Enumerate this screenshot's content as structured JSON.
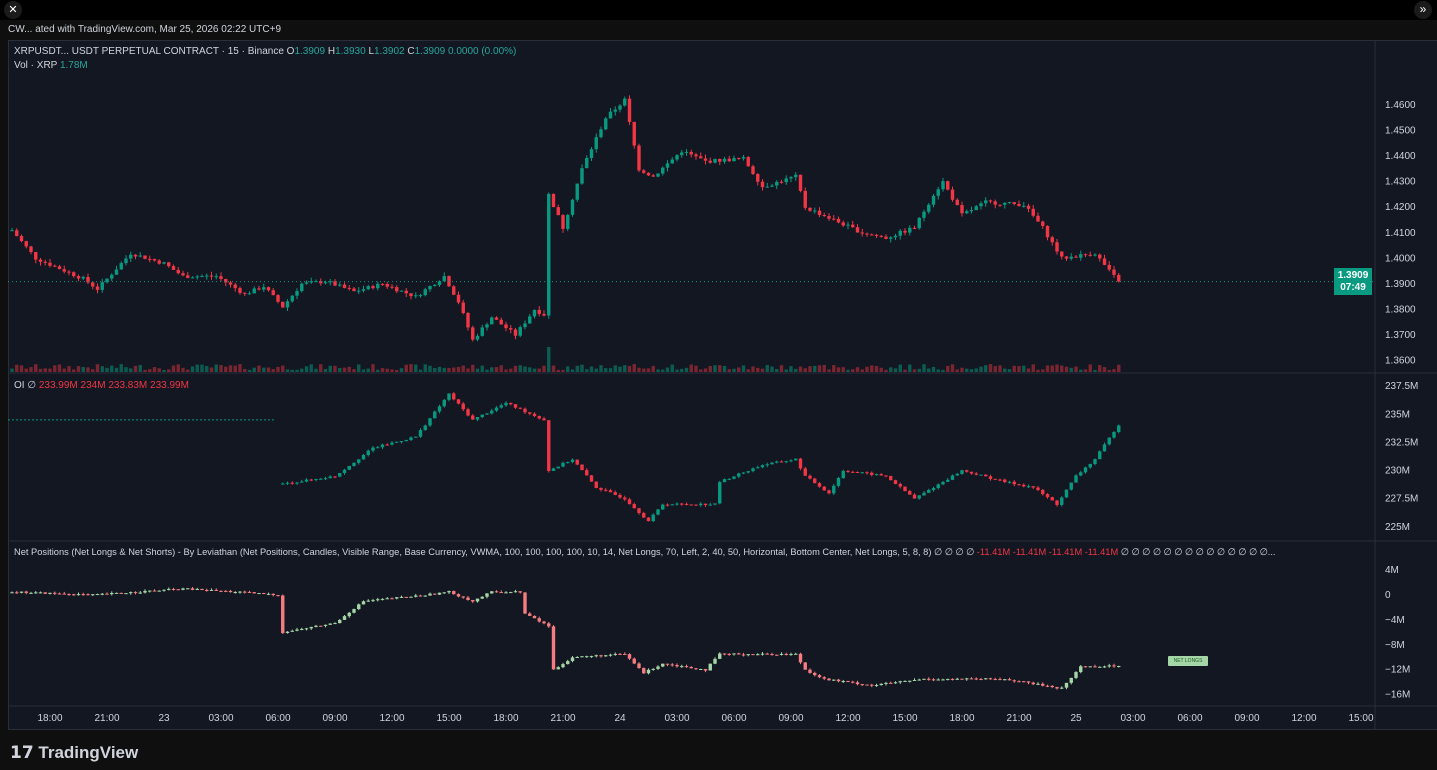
{
  "header": {
    "snapshot": "CW... ated with TradingView.com, Mar 25, 2026 02:22 UTC+9"
  },
  "legend": {
    "symbol": "XRPUSDT... USDT PERPETUAL CONTRACT · 15 · Binance",
    "o_label": "O",
    "o": "1.3909",
    "h_label": "H",
    "h": "1.3930",
    "l_label": "L",
    "l": "1.3902",
    "c_label": "C",
    "c": "1.3909",
    "change": "0.0000 (0.00%)",
    "vol_label": "Vol · XRP",
    "vol": "1.78M"
  },
  "oi_legend": {
    "label": "OI",
    "icon": "∅",
    "values": "233.99M  234M  233.83M  233.99M"
  },
  "net_legend": {
    "label": "Net Positions (Net Longs & Net Shorts) - By Leviathan (Net Positions, Candles, Visible Range, Base Currency, VWMA, 100, 100, 100, 100, 10, 14, Net Longs, 70, Left, 2, 40, 50, Horizontal, Bottom Center, Net Longs, 5, 8, 8)",
    "zeros1": "∅ ∅ ∅ ∅",
    "values": "-11.41M  -11.41M  -11.41M  -11.41M",
    "zeros2": "∅ ∅ ∅ ∅ ∅ ∅ ∅ ∅ ∅ ∅ ∅ ∅ ∅ ∅..."
  },
  "price_label": {
    "price": "1.3909",
    "countdown": "07:49"
  },
  "net_longs_tag": "NET LONGS",
  "logo": "TradingView",
  "buttons": {
    "close": "✕",
    "expand": "»"
  },
  "colors": {
    "up": "#089981",
    "down": "#f23645",
    "net_up": "#a5d6a7",
    "net_down": "#f77c80"
  },
  "chart_data": [
    {
      "type": "candlestick",
      "name": "price",
      "yticks": [
        1.36,
        1.37,
        1.38,
        1.39,
        1.4,
        1.41,
        1.42,
        1.43,
        1.44,
        1.45,
        1.46
      ],
      "ylim": [
        1.3555,
        1.4835
      ],
      "anchors": [
        [
          0,
          1.411
        ],
        [
          5,
          1.4
        ],
        [
          15,
          1.392
        ],
        [
          18,
          1.388
        ],
        [
          25,
          1.402
        ],
        [
          32,
          1.398
        ],
        [
          36,
          1.393
        ],
        [
          43,
          1.393
        ],
        [
          49,
          1.386
        ],
        [
          53,
          1.389
        ],
        [
          57,
          1.381
        ],
        [
          61,
          1.39
        ],
        [
          66,
          1.391
        ],
        [
          72,
          1.387
        ],
        [
          78,
          1.39
        ],
        [
          85,
          1.385
        ],
        [
          91,
          1.393
        ],
        [
          94,
          1.383
        ],
        [
          97,
          1.368
        ],
        [
          101,
          1.377
        ],
        [
          106,
          1.37
        ],
        [
          110,
          1.38
        ],
        [
          112,
          1.378
        ],
        [
          113,
          1.425
        ],
        [
          116,
          1.412
        ],
        [
          120,
          1.435
        ],
        [
          125,
          1.455
        ],
        [
          129,
          1.462
        ],
        [
          132,
          1.435
        ],
        [
          135,
          1.432
        ],
        [
          141,
          1.442
        ],
        [
          146,
          1.438
        ],
        [
          154,
          1.439
        ],
        [
          158,
          1.428
        ],
        [
          165,
          1.432
        ],
        [
          167,
          1.42
        ],
        [
          173,
          1.415
        ],
        [
          179,
          1.41
        ],
        [
          184,
          1.408
        ],
        [
          190,
          1.412
        ],
        [
          194,
          1.425
        ],
        [
          196,
          1.43
        ],
        [
          200,
          1.417
        ],
        [
          205,
          1.422
        ],
        [
          213,
          1.421
        ],
        [
          217,
          1.412
        ],
        [
          221,
          1.4
        ],
        [
          228,
          1.402
        ],
        [
          231,
          1.395
        ],
        [
          233,
          1.3909
        ]
      ]
    },
    {
      "type": "candlestick",
      "name": "open_interest",
      "yticks": [
        "225M",
        "227.5M",
        "230M",
        "232.5M",
        "235M",
        "237.5M"
      ],
      "ytick_values": [
        225,
        227.5,
        230,
        232.5,
        235,
        237.5
      ],
      "ylim": [
        224,
        238.4
      ],
      "flat_before": 234.5,
      "anchors": [
        [
          57,
          228.8
        ],
        [
          68,
          229.5
        ],
        [
          76,
          232
        ],
        [
          85,
          233
        ],
        [
          92,
          236.8
        ],
        [
          97,
          234.5
        ],
        [
          104,
          236
        ],
        [
          112,
          234.5
        ],
        [
          113,
          230
        ],
        [
          118,
          231
        ],
        [
          123,
          228.5
        ],
        [
          129,
          227.5
        ],
        [
          134,
          225.5
        ],
        [
          137,
          227
        ],
        [
          148,
          227
        ],
        [
          149,
          229
        ],
        [
          158,
          230.5
        ],
        [
          165,
          231
        ],
        [
          167,
          229.5
        ],
        [
          172,
          228
        ],
        [
          175,
          230
        ],
        [
          184,
          229.5
        ],
        [
          190,
          227.5
        ],
        [
          196,
          229
        ],
        [
          200,
          230
        ],
        [
          209,
          229
        ],
        [
          215,
          228.5
        ],
        [
          220,
          227
        ],
        [
          224,
          229.5
        ],
        [
          228,
          231
        ],
        [
          232,
          233.5
        ],
        [
          233,
          234
        ]
      ]
    },
    {
      "type": "candlestick",
      "name": "net_positions",
      "yticks": [
        "4M",
        "0",
        "−4M",
        "−8M",
        "−12M",
        "−16M"
      ],
      "ytick_values": [
        4,
        0,
        -4,
        -8,
        -12,
        -16
      ],
      "ylim": [
        -17.5,
        5.3
      ],
      "anchors": [
        [
          0,
          0.5
        ],
        [
          17,
          0
        ],
        [
          36,
          1
        ],
        [
          47,
          0.5
        ],
        [
          56,
          0
        ],
        [
          57,
          -6
        ],
        [
          68,
          -4.5
        ],
        [
          74,
          -1
        ],
        [
          87,
          0
        ],
        [
          92,
          0.5
        ],
        [
          97,
          -1
        ],
        [
          101,
          0.5
        ],
        [
          107,
          0.5
        ],
        [
          108,
          -3
        ],
        [
          113,
          -5
        ],
        [
          114,
          -12
        ],
        [
          118,
          -10
        ],
        [
          129,
          -9.5
        ],
        [
          133,
          -12.5
        ],
        [
          137,
          -11
        ],
        [
          146,
          -12
        ],
        [
          149,
          -9.5
        ],
        [
          165,
          -9.5
        ],
        [
          167,
          -12
        ],
        [
          171,
          -13.5
        ],
        [
          181,
          -14.5
        ],
        [
          192,
          -13.5
        ],
        [
          200,
          -13.5
        ],
        [
          209,
          -13.5
        ],
        [
          217,
          -14.5
        ],
        [
          221,
          -15
        ],
        [
          225,
          -11.5
        ],
        [
          233,
          -11.4
        ]
      ]
    }
  ],
  "time_axis": [
    "18:00",
    "21:00",
    "23",
    "03:00",
    "06:00",
    "09:00",
    "12:00",
    "15:00",
    "18:00",
    "21:00",
    "24",
    "03:00",
    "06:00",
    "09:00",
    "12:00",
    "15:00",
    "18:00",
    "21:00",
    "25",
    "03:00",
    "06:00",
    "09:00",
    "12:00",
    "15:00"
  ]
}
